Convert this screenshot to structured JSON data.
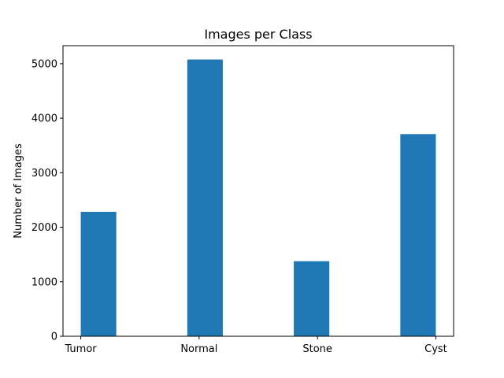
{
  "chart_data": {
    "type": "bar",
    "title": "Images per Class",
    "xlabel": "",
    "ylabel": "Number of Images",
    "categories": [
      "Tumor",
      "Normal",
      "Stone",
      "Cyst"
    ],
    "values": [
      2283,
      5077,
      1377,
      3709
    ],
    "ylim": [
      0,
      5331
    ],
    "yticks": [
      0,
      1000,
      2000,
      3000,
      4000,
      5000
    ],
    "grid": false,
    "legend": "none",
    "bar_color": "#1f77b4"
  }
}
